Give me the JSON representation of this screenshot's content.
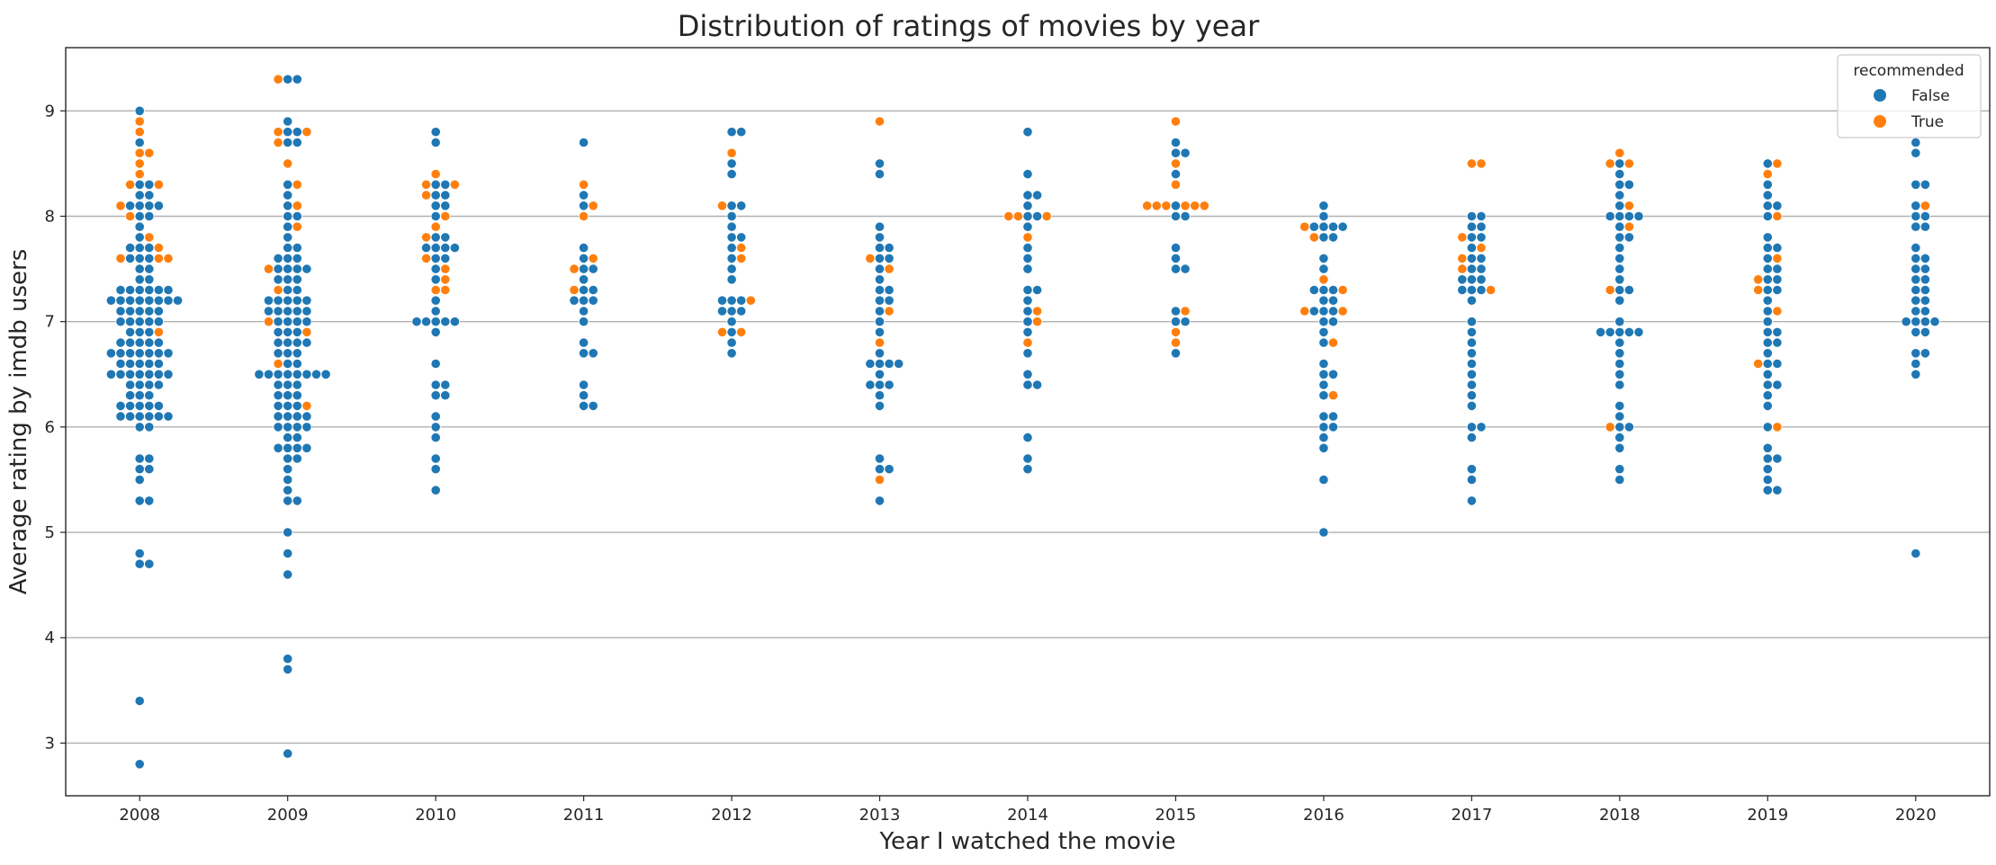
{
  "chart_data": {
    "type": "scatter",
    "subtype": "swarm",
    "title": "Distribution of ratings of movies by year",
    "xlabel": "Year I watched the movie",
    "ylabel": "Average rating by imdb users",
    "categories": [
      "2008",
      "2009",
      "2010",
      "2011",
      "2012",
      "2013",
      "2014",
      "2015",
      "2016",
      "2017",
      "2018",
      "2019",
      "2020"
    ],
    "y_ticks": [
      3,
      4,
      5,
      6,
      7,
      8,
      9
    ],
    "ylim": [
      2.5,
      9.6
    ],
    "grid": "horizontal",
    "legend": {
      "title": "recommended",
      "position": "top-right",
      "entries": [
        {
          "label": "False",
          "color": "#1f77b4"
        },
        {
          "label": "True",
          "color": "#ff7f0e"
        }
      ]
    },
    "series": [
      {
        "name": "False",
        "color": "#1f77b4",
        "points": {
          "2008": [
            9.0,
            8.7,
            8.3,
            8.3,
            8.2,
            8.2,
            8.1,
            8.1,
            8.1,
            8.1,
            8.0,
            8.0,
            7.9,
            7.8,
            7.7,
            7.7,
            7.7,
            7.6,
            7.6,
            7.6,
            7.5,
            7.5,
            7.4,
            7.4,
            7.3,
            7.3,
            7.3,
            7.3,
            7.3,
            7.3,
            7.2,
            7.2,
            7.2,
            7.2,
            7.2,
            7.2,
            7.2,
            7.2,
            7.1,
            7.1,
            7.1,
            7.1,
            7.1,
            7.0,
            7.0,
            7.0,
            7.0,
            7.0,
            6.9,
            6.9,
            6.9,
            6.8,
            6.8,
            6.8,
            6.8,
            6.8,
            6.7,
            6.7,
            6.7,
            6.7,
            6.7,
            6.7,
            6.7,
            6.6,
            6.6,
            6.6,
            6.6,
            6.6,
            6.5,
            6.5,
            6.5,
            6.5,
            6.5,
            6.5,
            6.5,
            6.4,
            6.4,
            6.4,
            6.4,
            6.3,
            6.3,
            6.3,
            6.2,
            6.2,
            6.2,
            6.2,
            6.2,
            6.1,
            6.1,
            6.1,
            6.1,
            6.1,
            6.1,
            6.0,
            6.0,
            5.7,
            5.7,
            5.6,
            5.6,
            5.5,
            5.3,
            5.3,
            4.8,
            4.7,
            4.7,
            3.4,
            2.8
          ],
          "2009": [
            9.3,
            9.3,
            8.9,
            8.8,
            8.8,
            8.7,
            8.7,
            8.3,
            8.2,
            8.1,
            8.0,
            8.0,
            7.9,
            7.8,
            7.7,
            7.7,
            7.6,
            7.6,
            7.6,
            7.5,
            7.5,
            7.5,
            7.5,
            7.4,
            7.4,
            7.4,
            7.3,
            7.3,
            7.2,
            7.2,
            7.2,
            7.2,
            7.2,
            7.1,
            7.1,
            7.1,
            7.1,
            7.1,
            7.0,
            7.0,
            7.0,
            7.0,
            6.9,
            6.9,
            6.9,
            6.8,
            6.8,
            6.8,
            6.8,
            6.7,
            6.7,
            6.7,
            6.6,
            6.6,
            6.5,
            6.5,
            6.5,
            6.5,
            6.5,
            6.5,
            6.5,
            6.5,
            6.4,
            6.4,
            6.4,
            6.3,
            6.3,
            6.3,
            6.2,
            6.2,
            6.2,
            6.1,
            6.1,
            6.1,
            6.1,
            6.0,
            6.0,
            6.0,
            6.0,
            5.9,
            5.9,
            5.8,
            5.8,
            5.8,
            5.8,
            5.7,
            5.7,
            5.6,
            5.5,
            5.4,
            5.3,
            5.3,
            5.0,
            4.8,
            4.6,
            3.8,
            3.7,
            2.9
          ],
          "2010": [
            8.8,
            8.7,
            8.3,
            8.3,
            8.2,
            8.2,
            8.1,
            8.1,
            8.0,
            7.8,
            7.8,
            7.7,
            7.7,
            7.7,
            7.7,
            7.6,
            7.6,
            7.5,
            7.4,
            7.2,
            7.1,
            7.0,
            7.0,
            7.0,
            7.0,
            7.0,
            6.9,
            6.6,
            6.4,
            6.4,
            6.3,
            6.3,
            6.1,
            6.0,
            5.9,
            5.7,
            5.6,
            5.4
          ],
          "2011": [
            8.7,
            8.2,
            8.1,
            7.7,
            7.6,
            7.5,
            7.5,
            7.4,
            7.3,
            7.3,
            7.2,
            7.2,
            7.2,
            7.1,
            7.0,
            6.8,
            6.7,
            6.7,
            6.4,
            6.3,
            6.2,
            6.2
          ],
          "2012": [
            8.8,
            8.8,
            8.5,
            8.4,
            8.1,
            8.1,
            8.0,
            7.9,
            7.8,
            7.8,
            7.7,
            7.6,
            7.5,
            7.4,
            7.2,
            7.2,
            7.2,
            7.1,
            7.1,
            7.1,
            7.0,
            6.9,
            6.8,
            6.7
          ],
          "2013": [
            8.5,
            8.4,
            7.9,
            7.8,
            7.7,
            7.7,
            7.6,
            7.6,
            7.5,
            7.4,
            7.3,
            7.3,
            7.2,
            7.2,
            7.1,
            7.0,
            6.9,
            6.7,
            6.6,
            6.6,
            6.6,
            6.6,
            6.5,
            6.4,
            6.4,
            6.4,
            6.3,
            6.2,
            5.7,
            5.6,
            5.6,
            5.3
          ],
          "2014": [
            8.8,
            8.4,
            8.2,
            8.2,
            8.1,
            8.0,
            8.0,
            7.9,
            7.7,
            7.6,
            7.5,
            7.3,
            7.3,
            7.2,
            7.1,
            7.0,
            6.9,
            6.7,
            6.5,
            6.4,
            6.4,
            5.9,
            5.7,
            5.6
          ],
          "2015": [
            8.7,
            8.6,
            8.6,
            8.4,
            8.1,
            8.0,
            8.0,
            7.7,
            7.6,
            7.5,
            7.5,
            7.1,
            7.0,
            7.0,
            6.7
          ],
          "2016": [
            8.1,
            8.0,
            7.9,
            7.9,
            7.9,
            7.9,
            7.8,
            7.8,
            7.6,
            7.5,
            7.3,
            7.3,
            7.3,
            7.2,
            7.2,
            7.1,
            7.1,
            7.1,
            7.0,
            7.0,
            6.9,
            6.8,
            6.6,
            6.5,
            6.5,
            6.4,
            6.3,
            6.1,
            6.1,
            6.0,
            6.0,
            5.9,
            5.8,
            5.5,
            5.0
          ],
          "2017": [
            8.0,
            8.0,
            7.9,
            7.9,
            7.8,
            7.8,
            7.7,
            7.6,
            7.6,
            7.5,
            7.5,
            7.4,
            7.4,
            7.4,
            7.3,
            7.3,
            7.3,
            7.2,
            7.0,
            6.9,
            6.8,
            6.7,
            6.6,
            6.5,
            6.4,
            6.3,
            6.2,
            6.0,
            6.0,
            5.9,
            5.6,
            5.5,
            5.3
          ],
          "2018": [
            8.5,
            8.4,
            8.3,
            8.3,
            8.2,
            8.1,
            8.0,
            8.0,
            8.0,
            8.0,
            7.9,
            7.8,
            7.8,
            7.7,
            7.6,
            7.5,
            7.4,
            7.3,
            7.3,
            7.2,
            7.0,
            6.9,
            6.9,
            6.9,
            6.9,
            6.9,
            6.8,
            6.7,
            6.6,
            6.5,
            6.4,
            6.2,
            6.1,
            6.0,
            6.0,
            5.9,
            5.8,
            5.6,
            5.5
          ],
          "2019": [
            8.5,
            8.3,
            8.2,
            8.1,
            8.1,
            8.0,
            7.8,
            7.7,
            7.7,
            7.6,
            7.5,
            7.5,
            7.4,
            7.4,
            7.3,
            7.3,
            7.2,
            7.1,
            7.0,
            6.9,
            6.9,
            6.8,
            6.8,
            6.7,
            6.6,
            6.6,
            6.5,
            6.4,
            6.4,
            6.3,
            6.2,
            6.0,
            5.8,
            5.7,
            5.7,
            5.6,
            5.5,
            5.4,
            5.4
          ],
          "2020": [
            8.7,
            8.6,
            8.3,
            8.3,
            8.1,
            8.0,
            8.0,
            7.9,
            7.9,
            7.7,
            7.6,
            7.6,
            7.5,
            7.5,
            7.4,
            7.4,
            7.3,
            7.3,
            7.2,
            7.2,
            7.1,
            7.1,
            7.0,
            7.0,
            7.0,
            7.0,
            6.9,
            6.9,
            6.7,
            6.7,
            6.6,
            6.5,
            4.8
          ]
        }
      },
      {
        "name": "True",
        "color": "#ff7f0e",
        "points": {
          "2008": [
            8.9,
            8.8,
            8.6,
            8.6,
            8.5,
            8.4,
            8.3,
            8.3,
            8.1,
            8.0,
            7.8,
            7.7,
            7.6,
            7.6,
            7.6,
            6.9
          ],
          "2009": [
            9.3,
            8.8,
            8.8,
            8.7,
            8.5,
            8.3,
            8.1,
            7.9,
            7.5,
            7.3,
            7.0,
            6.9,
            6.6,
            6.2
          ],
          "2010": [
            8.4,
            8.3,
            8.3,
            8.2,
            8.0,
            7.9,
            7.8,
            7.6,
            7.5,
            7.4,
            7.3,
            7.3
          ],
          "2011": [
            8.3,
            8.1,
            8.0,
            7.6,
            7.5,
            7.3
          ],
          "2012": [
            8.6,
            8.1,
            7.7,
            7.6,
            7.2,
            6.9,
            6.9
          ],
          "2013": [
            8.9,
            7.6,
            7.5,
            7.1,
            6.8,
            5.5
          ],
          "2014": [
            8.0,
            8.0,
            8.0,
            7.8,
            7.1,
            7.0,
            6.8
          ],
          "2015": [
            8.9,
            8.5,
            8.3,
            8.1,
            8.1,
            8.1,
            8.1,
            8.1,
            8.1,
            7.1,
            6.9,
            6.8
          ],
          "2016": [
            7.9,
            7.8,
            7.4,
            7.3,
            7.1,
            7.1,
            6.8,
            6.3
          ],
          "2017": [
            8.5,
            8.5,
            7.8,
            7.7,
            7.6,
            7.5,
            7.3
          ],
          "2018": [
            8.6,
            8.5,
            8.5,
            8.1,
            7.9,
            7.3,
            6.0
          ],
          "2019": [
            8.5,
            8.4,
            8.0,
            7.6,
            7.4,
            7.3,
            7.1,
            6.6,
            6.0
          ],
          "2020": [
            8.1
          ]
        }
      }
    ]
  }
}
